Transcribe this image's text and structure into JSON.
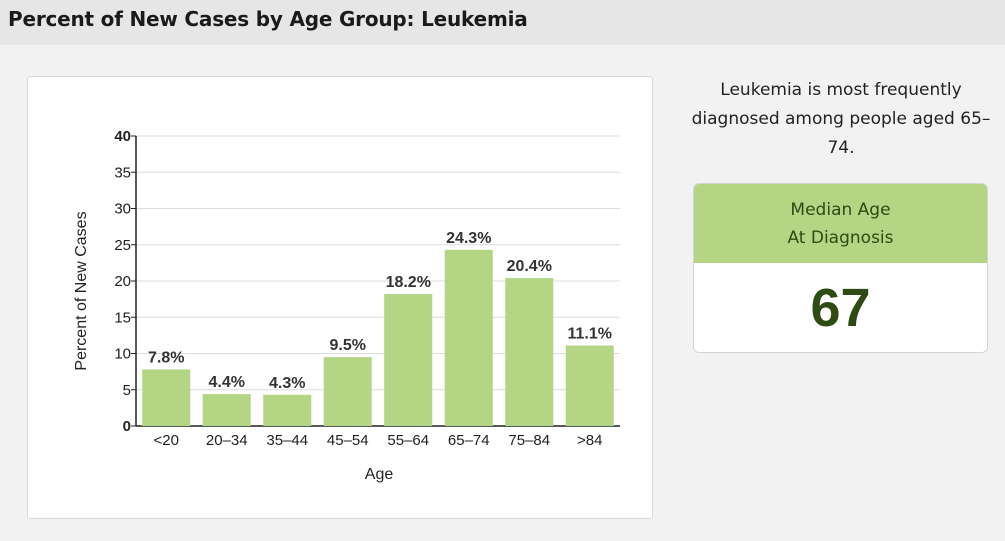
{
  "page_title": "Percent of New Cases by Age Group: Leukemia",
  "summary_text": "Leukemia is most frequently diagnosed among people aged 65–74.",
  "median": {
    "heading": "Median Age\nAt Diagnosis",
    "value": "67"
  },
  "colors": {
    "bar": "#b3d584",
    "median_text": "#2d4b12",
    "header_bg": "#e6e6e6"
  },
  "chart_data": {
    "type": "bar",
    "title": "",
    "xlabel": "Age",
    "ylabel": "Percent of New Cases",
    "categories": [
      "<20",
      "20–34",
      "35–44",
      "45–54",
      "55–64",
      "65–74",
      "75–84",
      ">84"
    ],
    "values": [
      7.8,
      4.4,
      4.3,
      9.5,
      18.2,
      24.3,
      20.4,
      11.1
    ],
    "value_labels": [
      "7.8%",
      "4.4%",
      "4.3%",
      "9.5%",
      "18.2%",
      "24.3%",
      "20.4%",
      "11.1%"
    ],
    "ylim": [
      0,
      40
    ],
    "yticks": [
      0,
      5,
      10,
      15,
      20,
      25,
      30,
      35,
      40
    ],
    "grid": true,
    "legend": "none"
  }
}
